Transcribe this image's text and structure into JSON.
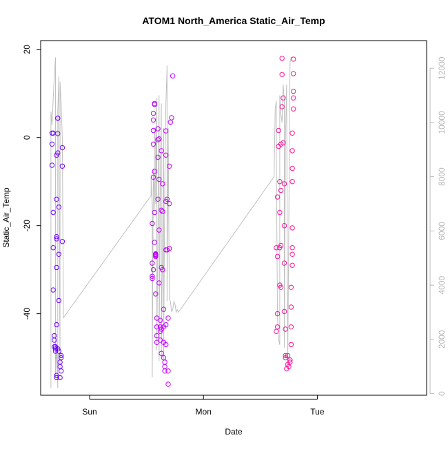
{
  "chart_data": {
    "type": "scatter",
    "title": "ATOM1 North_America Static_Air_Temp",
    "xlabel": "Date",
    "ylabel": "Static_Air_Temp",
    "x_tick_labels": [
      "Sun",
      "Mon",
      "Tue"
    ],
    "y_ticks": [
      -40,
      -20,
      0,
      20
    ],
    "y_tick_labels": [
      "-40",
      "-20",
      "0",
      "20"
    ],
    "ylim": [
      -58.5,
      22
    ],
    "y2_ticks": [
      0,
      2000,
      4000,
      6000,
      8000,
      10000,
      12000
    ],
    "y2_tick_labels": [
      "0",
      "2000",
      "4000",
      "6000",
      "8000",
      "10000",
      "12000"
    ],
    "y2lim": [
      -60,
      13020
    ],
    "xlim": [
      -0.43,
      2.96
    ],
    "x_units": "days from Sunday 00:00 (estimated)",
    "colors": {
      "early_points": "#6a00ff",
      "mid_points": "#cc00ff",
      "late_points": "#ff1493",
      "altitude_line": "#c0c0c0",
      "right_axis": "#b8b8b8"
    },
    "series": [
      {
        "name": "",
        "type": "scatter",
        "axis": "left",
        "color_gradient": [
          "#6a00ff",
          "#cc00ff",
          "#ff1493"
        ],
        "points": [
          [
            -0.33,
            1.0
          ],
          [
            -0.33,
            -1.5
          ],
          [
            -0.33,
            -6.3
          ],
          [
            -0.32,
            1.0
          ],
          [
            -0.32,
            -17.0
          ],
          [
            -0.32,
            -25.0
          ],
          [
            -0.32,
            -34.6
          ],
          [
            -0.31,
            -45.0
          ],
          [
            -0.31,
            -46.0
          ],
          [
            -0.31,
            -47.5
          ],
          [
            -0.3,
            -48.0
          ],
          [
            -0.3,
            -47.5
          ],
          [
            -0.3,
            -48.5
          ],
          [
            -0.29,
            -42.5
          ],
          [
            -0.29,
            -54.0
          ],
          [
            -0.29,
            -54.5
          ],
          [
            -0.28,
            -48.0
          ],
          [
            -0.29,
            -29.5
          ],
          [
            -0.29,
            -22.5
          ],
          [
            -0.29,
            -23.0
          ],
          [
            -0.29,
            -14.0
          ],
          [
            -0.29,
            -4.0
          ],
          [
            -0.28,
            0.9
          ],
          [
            -0.28,
            4.4
          ],
          [
            -0.28,
            4.4
          ],
          [
            -0.28,
            -3.5
          ],
          [
            -0.27,
            -15.8
          ],
          [
            -0.27,
            -26.5
          ],
          [
            -0.27,
            -37.0
          ],
          [
            -0.27,
            -48.5
          ],
          [
            -0.26,
            -51.0
          ],
          [
            -0.26,
            -52.0
          ],
          [
            -0.26,
            -54.5
          ],
          [
            -0.25,
            -53.0
          ],
          [
            -0.25,
            -50.0
          ],
          [
            -0.25,
            -49.5
          ],
          [
            -0.24,
            -23.6
          ],
          [
            -0.24,
            -6.5
          ],
          [
            -0.24,
            -2.3
          ],
          [
            0.55,
            -32.0
          ],
          [
            0.55,
            -31.5
          ],
          [
            0.55,
            -28.5
          ],
          [
            0.55,
            -19.5
          ],
          [
            0.56,
            -30.0
          ],
          [
            0.56,
            -9.0
          ],
          [
            0.56,
            -1.5
          ],
          [
            0.56,
            1.6
          ],
          [
            0.56,
            4.0
          ],
          [
            0.56,
            5.5
          ],
          [
            0.57,
            7.5
          ],
          [
            0.57,
            7.7
          ],
          [
            0.57,
            -7.7
          ],
          [
            0.57,
            -17.0
          ],
          [
            0.57,
            -23.8
          ],
          [
            0.58,
            -27.0
          ],
          [
            0.58,
            -26.5
          ],
          [
            0.58,
            -26.6
          ],
          [
            0.58,
            -26.4
          ],
          [
            0.58,
            -26.8
          ],
          [
            0.58,
            -35.5
          ],
          [
            0.59,
            -45.0
          ],
          [
            0.59,
            -46.5
          ],
          [
            0.59,
            -41.0
          ],
          [
            0.59,
            -43.0
          ],
          [
            0.6,
            -14.0
          ],
          [
            0.6,
            -4.5
          ],
          [
            0.6,
            -0.5
          ],
          [
            0.6,
            2.0
          ],
          [
            0.61,
            -0.3
          ],
          [
            0.61,
            -9.5
          ],
          [
            0.61,
            -21.0
          ],
          [
            0.61,
            -33.0
          ],
          [
            0.62,
            -41.5
          ],
          [
            0.62,
            -43.0
          ],
          [
            0.62,
            -44.0
          ],
          [
            0.62,
            -46.0
          ],
          [
            0.63,
            -49.0
          ],
          [
            0.63,
            -43.5
          ],
          [
            0.63,
            -29.5
          ],
          [
            0.63,
            -16.5
          ],
          [
            0.63,
            -3.0
          ],
          [
            0.64,
            -10.5
          ],
          [
            0.64,
            -16.8
          ],
          [
            0.64,
            -30.0
          ],
          [
            0.65,
            -39.0
          ],
          [
            0.65,
            -43.0
          ],
          [
            0.65,
            -46.5
          ],
          [
            0.65,
            -50.0
          ],
          [
            0.66,
            -51.0
          ],
          [
            0.66,
            -52.0
          ],
          [
            0.66,
            -53.0
          ],
          [
            0.67,
            -47.0
          ],
          [
            0.67,
            -42.5
          ],
          [
            0.67,
            -25.5
          ],
          [
            0.67,
            -14.5
          ],
          [
            0.67,
            -4.0
          ],
          [
            0.67,
            1.5
          ],
          [
            0.68,
            -14.0
          ],
          [
            0.68,
            -25.5
          ],
          [
            0.69,
            -41.0
          ],
          [
            0.69,
            -53.0
          ],
          [
            0.69,
            -56.0
          ],
          [
            0.7,
            -25.2
          ],
          [
            0.7,
            -15.0
          ],
          [
            0.7,
            -6.5
          ],
          [
            0.71,
            3.5
          ],
          [
            0.72,
            4.5
          ],
          [
            0.73,
            14.0
          ],
          [
            1.64,
            -25.0
          ],
          [
            1.64,
            -44.0
          ],
          [
            1.65,
            -43.0
          ],
          [
            1.65,
            -40.0
          ],
          [
            1.65,
            -27.0
          ],
          [
            1.65,
            -13.5
          ],
          [
            1.66,
            1.6
          ],
          [
            1.66,
            -2.0
          ],
          [
            1.67,
            -10.0
          ],
          [
            1.67,
            -17.0
          ],
          [
            1.67,
            -25.0
          ],
          [
            1.67,
            -33.5
          ],
          [
            1.68,
            -34.0
          ],
          [
            1.68,
            -24.5
          ],
          [
            1.68,
            -12.0
          ],
          [
            1.68,
            -1.5
          ],
          [
            1.69,
            7.0
          ],
          [
            1.69,
            14.3
          ],
          [
            1.69,
            18.0
          ],
          [
            1.7,
            9.0
          ],
          [
            1.7,
            -1.2
          ],
          [
            1.71,
            -10.5
          ],
          [
            1.71,
            -20.0
          ],
          [
            1.71,
            -28.5
          ],
          [
            1.71,
            -39.5
          ],
          [
            1.72,
            -43.5
          ],
          [
            1.72,
            -49.5
          ],
          [
            1.72,
            -50.0
          ],
          [
            1.73,
            -52.5
          ],
          [
            1.74,
            -51.5
          ],
          [
            1.74,
            -49.5
          ],
          [
            1.75,
            -52.0
          ],
          [
            1.76,
            -51.0
          ],
          [
            1.76,
            -50.5
          ],
          [
            1.77,
            -47.0
          ],
          [
            1.77,
            -43.0
          ],
          [
            1.77,
            -38.5
          ],
          [
            1.77,
            -34.0
          ],
          [
            1.78,
            -29.0
          ],
          [
            1.78,
            -26.5
          ],
          [
            1.78,
            -25.0
          ],
          [
            1.78,
            -20.5
          ],
          [
            1.78,
            -10.0
          ],
          [
            1.78,
            -7.0
          ],
          [
            1.78,
            -3.0
          ],
          [
            1.78,
            1.0
          ],
          [
            1.79,
            6.5
          ],
          [
            1.79,
            10.5
          ],
          [
            1.79,
            9.0
          ],
          [
            1.79,
            14.5
          ],
          [
            1.79,
            17.8
          ]
        ]
      },
      {
        "name": "",
        "type": "line",
        "axis": "right",
        "color": "#c0c0c0",
        "points": [
          [
            -0.34,
            200
          ],
          [
            -0.34,
            7400
          ],
          [
            -0.34,
            10400
          ],
          [
            -0.33,
            9900
          ],
          [
            -0.32,
            10900
          ],
          [
            -0.31,
            11700
          ],
          [
            -0.3,
            12400
          ],
          [
            -0.3,
            600
          ],
          [
            -0.29,
            1800
          ],
          [
            -0.28,
            200
          ],
          [
            -0.28,
            10400
          ],
          [
            -0.27,
            11700
          ],
          [
            -0.27,
            9300
          ],
          [
            -0.26,
            900
          ],
          [
            -0.26,
            11500
          ],
          [
            -0.25,
            10700
          ],
          [
            -0.24,
            9400
          ],
          [
            -0.23,
            2800
          ],
          [
            0.54,
            7300
          ],
          [
            0.54,
            8000
          ],
          [
            0.55,
            6900
          ],
          [
            0.55,
            600
          ],
          [
            0.56,
            8300
          ],
          [
            0.57,
            6800
          ],
          [
            0.57,
            9800
          ],
          [
            0.58,
            9200
          ],
          [
            0.58,
            7000
          ],
          [
            0.59,
            10900
          ],
          [
            0.59,
            1600
          ],
          [
            0.6,
            6000
          ],
          [
            0.61,
            11000
          ],
          [
            0.61,
            1200
          ],
          [
            0.62,
            7500
          ],
          [
            0.63,
            10700
          ],
          [
            0.63,
            1300
          ],
          [
            0.64,
            5500
          ],
          [
            0.65,
            9800
          ],
          [
            0.65,
            1200
          ],
          [
            0.66,
            7800
          ],
          [
            0.67,
            10700
          ],
          [
            0.68,
            12100
          ],
          [
            0.68,
            3400
          ],
          [
            0.69,
            9800
          ],
          [
            0.7,
            3500
          ],
          [
            0.71,
            3400
          ],
          [
            0.72,
            3000
          ],
          [
            0.73,
            3100
          ],
          [
            0.74,
            3400
          ],
          [
            0.75,
            3300
          ],
          [
            0.76,
            3000
          ],
          [
            0.77,
            3100
          ],
          [
            0.78,
            3000
          ],
          [
            1.62,
            8000
          ],
          [
            1.63,
            10500
          ],
          [
            1.64,
            10800
          ],
          [
            1.64,
            8700
          ],
          [
            1.65,
            2800
          ],
          [
            1.66,
            2000
          ],
          [
            1.67,
            1800
          ],
          [
            1.67,
            11000
          ],
          [
            1.68,
            10300
          ],
          [
            1.69,
            10000
          ],
          [
            1.7,
            11400
          ],
          [
            1.71,
            10800
          ],
          [
            1.71,
            1700
          ],
          [
            1.72,
            9400
          ],
          [
            1.73,
            11400
          ],
          [
            1.74,
            1100
          ],
          [
            1.76,
            12200
          ],
          [
            1.77,
            12400
          ],
          [
            1.78,
            12400
          ],
          [
            1.79,
            12400
          ]
        ]
      }
    ],
    "grid": false,
    "legend": "none"
  }
}
